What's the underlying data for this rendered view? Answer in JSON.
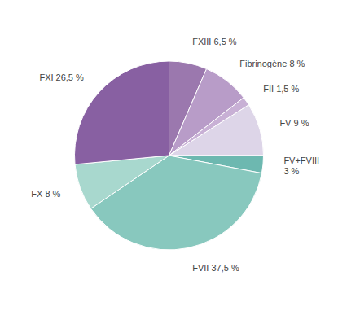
{
  "chart_data": {
    "type": "pie",
    "categories": [
      "FXIII 6,5 %",
      "Fibrinogène 8 %",
      "FII 1,5 %",
      "FV 9 %",
      "FV+FVIII\n3 %",
      "FVII 37,5 %",
      "FX 8 %",
      "FXI 26,5 %"
    ],
    "values": [
      6.5,
      8.0,
      1.5,
      9.0,
      3.0,
      37.5,
      8.0,
      26.5
    ],
    "colors": [
      "#9B78AE",
      "#B89CC8",
      "#C8B0D5",
      "#DDD5E8",
      "#6DB8B0",
      "#88C8BE",
      "#A8D8CE",
      "#8860A2"
    ]
  }
}
